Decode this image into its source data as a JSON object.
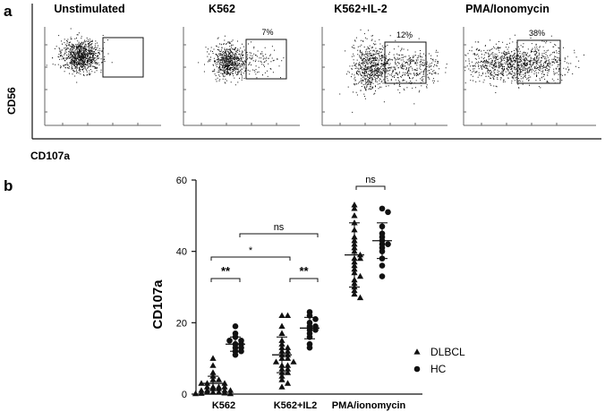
{
  "panels": {
    "a_label": "a",
    "b_label": "b"
  },
  "flow": {
    "ylabel": "CD56",
    "xlabel": "CD107a",
    "plots": [
      {
        "title": "Unstimulated",
        "percent": ""
      },
      {
        "title": "K562",
        "percent": "7%"
      },
      {
        "title": "K562+IL-2",
        "percent": "12%"
      },
      {
        "title": "PMA/Ionomycin",
        "percent": "38%"
      }
    ]
  },
  "chart_data": {
    "type": "scatter",
    "title": "",
    "xlabel": "",
    "ylabel": "CD107a",
    "ylim": [
      0,
      60
    ],
    "yticks": [
      0,
      20,
      40,
      60
    ],
    "categories": [
      "K562",
      "K562+IL2",
      "PMA/ionomycin"
    ],
    "legend": {
      "placement": "right",
      "entries": [
        {
          "name": "DLBCL",
          "marker": "triangle"
        },
        {
          "name": "HC",
          "marker": "circle"
        }
      ]
    },
    "series": [
      {
        "name": "DLBCL",
        "marker": "triangle",
        "values": [
          [
            10,
            8,
            6,
            5,
            4,
            4,
            3,
            3,
            3,
            2,
            2,
            2,
            2,
            1.5,
            1.5,
            1,
            1,
            1,
            1,
            0.5,
            0.5,
            0.5,
            0.3,
            0.2,
            0.1,
            0.1
          ],
          [
            22,
            22,
            19,
            17,
            15,
            14,
            13,
            13,
            12,
            12,
            11,
            11,
            10,
            10,
            9,
            9,
            8,
            8,
            7,
            7,
            6,
            6,
            5,
            4,
            3,
            2
          ],
          [
            53,
            52,
            50,
            48,
            46,
            44,
            43,
            42,
            41,
            40,
            39,
            38,
            38,
            37,
            36,
            35,
            34,
            33,
            32,
            31,
            30,
            29,
            28,
            27
          ]
        ],
        "mean": [
          3,
          11,
          39
        ],
        "sd": [
          2,
          5,
          9
        ]
      },
      {
        "name": "HC",
        "marker": "circle",
        "values": [
          [
            19,
            17,
            16,
            15,
            15,
            14,
            14,
            13,
            13,
            12,
            12,
            11
          ],
          [
            23,
            22,
            21,
            20,
            19,
            19,
            18,
            18,
            17,
            16,
            14,
            13
          ],
          [
            52,
            51,
            47,
            45,
            44,
            43,
            42,
            42,
            41,
            40,
            38,
            36,
            33
          ]
        ],
        "mean": [
          14,
          18.5,
          43
        ],
        "sd": [
          2,
          3,
          5
        ]
      }
    ],
    "comparisons": [
      {
        "groups": [
          "K562 DLBCL",
          "K562 HC"
        ],
        "label": "**"
      },
      {
        "groups": [
          "K562+IL2 DLBCL",
          "K562+IL2 HC"
        ],
        "label": "**"
      },
      {
        "groups": [
          "K562 DLBCL",
          "K562+IL2 DLBCL"
        ],
        "label": "*"
      },
      {
        "groups": [
          "K562 HC",
          "K562+IL2 HC"
        ],
        "label": "ns"
      },
      {
        "groups": [
          "PMA/ionomycin DLBCL",
          "PMA/ionomycin HC"
        ],
        "label": "ns"
      }
    ]
  }
}
